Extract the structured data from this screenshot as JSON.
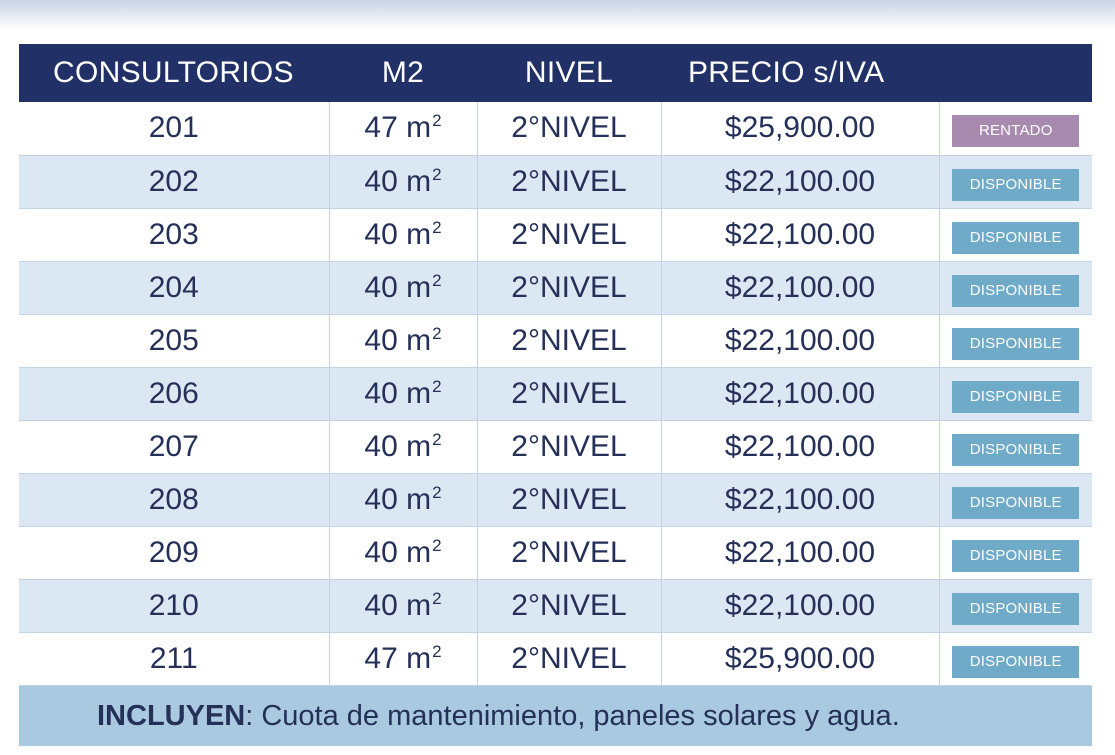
{
  "table": {
    "headers": [
      "CONSULTORIOS",
      "M2",
      "NIVEL",
      "PRECIO s/IVA",
      ""
    ],
    "unit": "m",
    "unit_exp": "2",
    "rows": [
      {
        "consultorio": "201",
        "m2": "47",
        "nivel": "2°NIVEL",
        "precio": "$25,900.00",
        "estado": "RENTADO"
      },
      {
        "consultorio": "202",
        "m2": "40",
        "nivel": "2°NIVEL",
        "precio": "$22,100.00",
        "estado": "DISPONIBLE"
      },
      {
        "consultorio": "203",
        "m2": "40",
        "nivel": "2°NIVEL",
        "precio": "$22,100.00",
        "estado": "DISPONIBLE"
      },
      {
        "consultorio": "204",
        "m2": "40",
        "nivel": "2°NIVEL",
        "precio": "$22,100.00",
        "estado": "DISPONIBLE"
      },
      {
        "consultorio": "205",
        "m2": "40",
        "nivel": "2°NIVEL",
        "precio": "$22,100.00",
        "estado": "DISPONIBLE"
      },
      {
        "consultorio": "206",
        "m2": "40",
        "nivel": "2°NIVEL",
        "precio": "$22,100.00",
        "estado": "DISPONIBLE"
      },
      {
        "consultorio": "207",
        "m2": "40",
        "nivel": "2°NIVEL",
        "precio": "$22,100.00",
        "estado": "DISPONIBLE"
      },
      {
        "consultorio": "208",
        "m2": "40",
        "nivel": "2°NIVEL",
        "precio": "$22,100.00",
        "estado": "DISPONIBLE"
      },
      {
        "consultorio": "209",
        "m2": "40",
        "nivel": "2°NIVEL",
        "precio": "$22,100.00",
        "estado": "DISPONIBLE"
      },
      {
        "consultorio": "210",
        "m2": "40",
        "nivel": "2°NIVEL",
        "precio": "$22,100.00",
        "estado": "DISPONIBLE"
      },
      {
        "consultorio": "211",
        "m2": "47",
        "nivel": "2°NIVEL",
        "precio": "$25,900.00",
        "estado": "DISPONIBLE"
      }
    ]
  },
  "footer": {
    "label": "INCLUYEN",
    "text": ": Cuota de mantenimiento, paneles solares y agua."
  },
  "colors": {
    "header_bg": "#213167",
    "row_alt_bg": "#dce7f4",
    "disponible": "#6faac9",
    "rentado": "#a88aae",
    "footer_bg": "#a9c9e0"
  }
}
